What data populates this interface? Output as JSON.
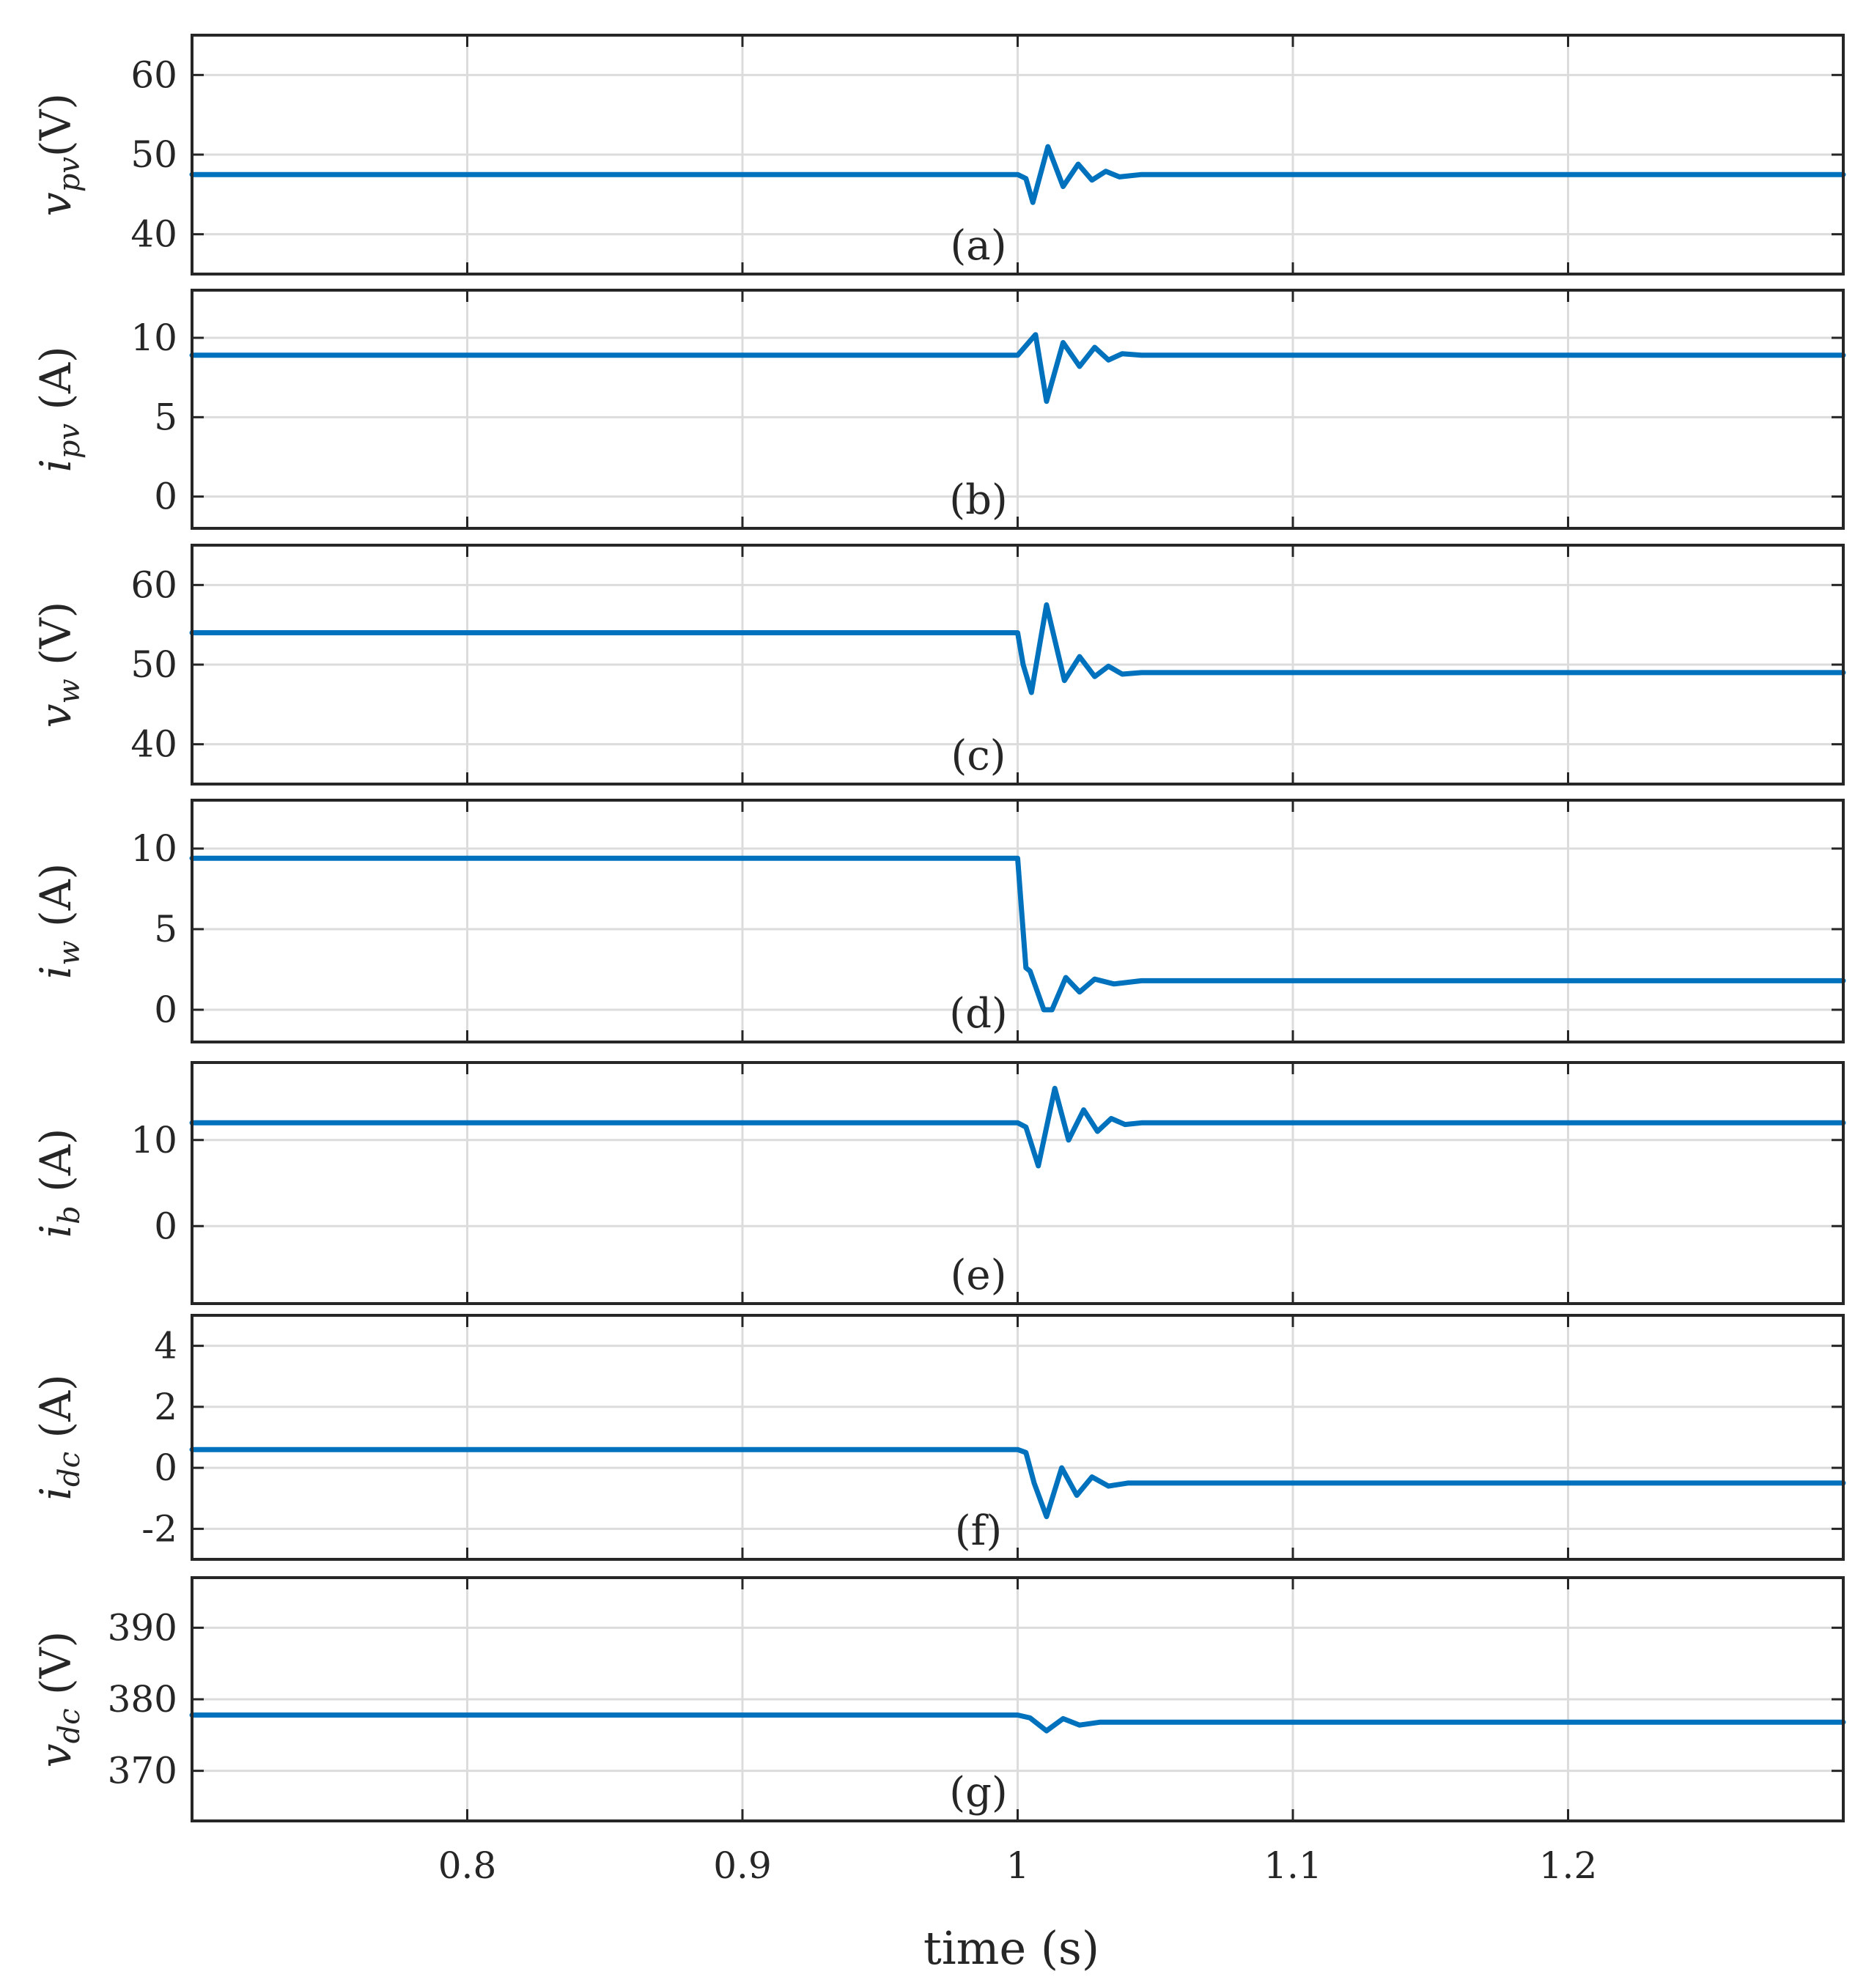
{
  "colors": {
    "series": "#0072BD",
    "axes": "#262626",
    "grid": "#dcdcdc"
  },
  "xlabel": "time (s)",
  "chart_data": [
    {
      "type": "line",
      "panel_label": "(a)",
      "ylabel": "v_pv(V)",
      "ylabel_parts": {
        "main": "v",
        "sub": "pv",
        "rest": "(V)"
      },
      "xlim": [
        0.7,
        1.3
      ],
      "ylim": [
        35,
        65
      ],
      "xticks": [
        0.8,
        0.9,
        1.0,
        1.1,
        1.2
      ],
      "yticks": [
        40,
        50,
        60
      ],
      "yticklabels": [
        "40",
        "50",
        "60"
      ],
      "grid": true,
      "series": [
        {
          "x": [
            0.7,
            1.0,
            1.003,
            1.0055,
            1.011,
            1.0165,
            1.022,
            1.027,
            1.032,
            1.037,
            1.045,
            1.3
          ],
          "y": [
            47.5,
            47.5,
            47.0,
            44.0,
            51.0,
            46.0,
            48.8,
            46.8,
            47.9,
            47.2,
            47.5,
            47.5
          ]
        }
      ]
    },
    {
      "type": "line",
      "panel_label": "(b)",
      "ylabel": "i_pv (A)",
      "ylabel_parts": {
        "main": "i",
        "sub": "pv",
        "rest": " (A)"
      },
      "xlim": [
        0.7,
        1.3
      ],
      "ylim": [
        -2,
        13
      ],
      "xticks": [
        0.8,
        0.9,
        1.0,
        1.1,
        1.2
      ],
      "yticks": [
        0,
        5,
        10
      ],
      "yticklabels": [
        "0",
        "5",
        "10"
      ],
      "grid": true,
      "series": [
        {
          "x": [
            0.7,
            1.0,
            1.0035,
            1.0065,
            1.0105,
            1.0165,
            1.0225,
            1.028,
            1.033,
            1.038,
            1.045,
            1.3
          ],
          "y": [
            8.9,
            8.9,
            9.6,
            10.2,
            6.0,
            9.7,
            8.2,
            9.4,
            8.6,
            9.0,
            8.9,
            8.9
          ]
        }
      ]
    },
    {
      "type": "line",
      "panel_label": "(c)",
      "ylabel": "v_w (V)",
      "ylabel_parts": {
        "main": "v",
        "sub": "w",
        "rest": " (V)"
      },
      "xlim": [
        0.7,
        1.3
      ],
      "ylim": [
        35,
        65
      ],
      "xticks": [
        0.8,
        0.9,
        1.0,
        1.1,
        1.2
      ],
      "yticks": [
        40,
        50,
        60
      ],
      "yticklabels": [
        "40",
        "50",
        "60"
      ],
      "grid": true,
      "series": [
        {
          "x": [
            0.7,
            1.0,
            1.002,
            1.005,
            1.0105,
            1.017,
            1.0225,
            1.028,
            1.033,
            1.038,
            1.045,
            1.3
          ],
          "y": [
            54.0,
            54.0,
            50.0,
            46.5,
            57.5,
            48.0,
            51.0,
            48.5,
            49.8,
            48.8,
            49.0,
            49.0
          ]
        }
      ]
    },
    {
      "type": "line",
      "panel_label": "(d)",
      "ylabel": "i_w (A)",
      "ylabel_parts": {
        "main": "i",
        "sub": "w",
        "rest": " (A)"
      },
      "xlim": [
        0.7,
        1.3
      ],
      "ylim": [
        -2,
        13
      ],
      "xticks": [
        0.8,
        0.9,
        1.0,
        1.1,
        1.2
      ],
      "yticks": [
        0,
        5,
        10
      ],
      "yticklabels": [
        "0",
        "5",
        "10"
      ],
      "grid": true,
      "series": [
        {
          "x": [
            0.7,
            1.0,
            1.0015,
            1.003,
            1.0045,
            1.0095,
            1.0125,
            1.0175,
            1.0225,
            1.028,
            1.035,
            1.045,
            1.3
          ],
          "y": [
            9.4,
            9.4,
            6.0,
            2.6,
            2.4,
            0.0,
            0.0,
            2.0,
            1.1,
            1.9,
            1.6,
            1.8,
            1.8
          ]
        }
      ]
    },
    {
      "type": "line",
      "panel_label": "(e)",
      "ylabel": "i_b (A)",
      "ylabel_parts": {
        "main": "i",
        "sub": "b",
        "rest": " (A)"
      },
      "xlim": [
        0.7,
        1.3
      ],
      "ylim": [
        -9,
        19
      ],
      "xticks": [
        0.8,
        0.9,
        1.0,
        1.1,
        1.2
      ],
      "yticks": [
        0,
        10
      ],
      "yticklabels": [
        "0",
        "10"
      ],
      "grid": true,
      "series": [
        {
          "x": [
            0.7,
            1.0,
            1.003,
            1.0075,
            1.0135,
            1.0185,
            1.024,
            1.029,
            1.034,
            1.039,
            1.045,
            1.3
          ],
          "y": [
            12.0,
            12.0,
            11.5,
            7.0,
            16.0,
            10.0,
            13.5,
            11.0,
            12.5,
            11.8,
            12.0,
            12.0
          ]
        }
      ]
    },
    {
      "type": "line",
      "panel_label": "(f)",
      "ylabel": "i_dc (A)",
      "ylabel_parts": {
        "main": "i",
        "sub": "dc",
        "rest": " (A)"
      },
      "xlim": [
        0.7,
        1.3
      ],
      "ylim": [
        -3,
        5
      ],
      "xticks": [
        0.8,
        0.9,
        1.0,
        1.1,
        1.2
      ],
      "yticks": [
        -2,
        0,
        2,
        4
      ],
      "yticklabels": [
        "-2",
        "0",
        "2",
        "4"
      ],
      "grid": true,
      "series": [
        {
          "x": [
            0.7,
            1.0,
            1.003,
            1.006,
            1.0105,
            1.016,
            1.0215,
            1.027,
            1.033,
            1.04,
            1.3
          ],
          "y": [
            0.6,
            0.6,
            0.5,
            -0.5,
            -1.6,
            0.0,
            -0.9,
            -0.3,
            -0.6,
            -0.5,
            -0.5
          ]
        }
      ]
    },
    {
      "type": "line",
      "panel_label": "(g)",
      "ylabel": "v_dc (V)",
      "ylabel_parts": {
        "main": "v",
        "sub": "dc",
        "rest": " (V)"
      },
      "xlim": [
        0.7,
        1.3
      ],
      "ylim": [
        363,
        397
      ],
      "xticks": [
        0.8,
        0.9,
        1.0,
        1.1,
        1.2
      ],
      "xticklabels": [
        "0.8",
        "0.9",
        "1",
        "1.1",
        "1.2"
      ],
      "yticks": [
        370,
        380,
        390
      ],
      "yticklabels": [
        "370",
        "380",
        "390"
      ],
      "grid": true,
      "series": [
        {
          "x": [
            0.7,
            1.0,
            1.0045,
            1.0105,
            1.0165,
            1.0225,
            1.03,
            1.3
          ],
          "y": [
            377.8,
            377.8,
            377.4,
            375.6,
            377.3,
            376.4,
            376.8,
            376.8
          ]
        }
      ]
    }
  ]
}
